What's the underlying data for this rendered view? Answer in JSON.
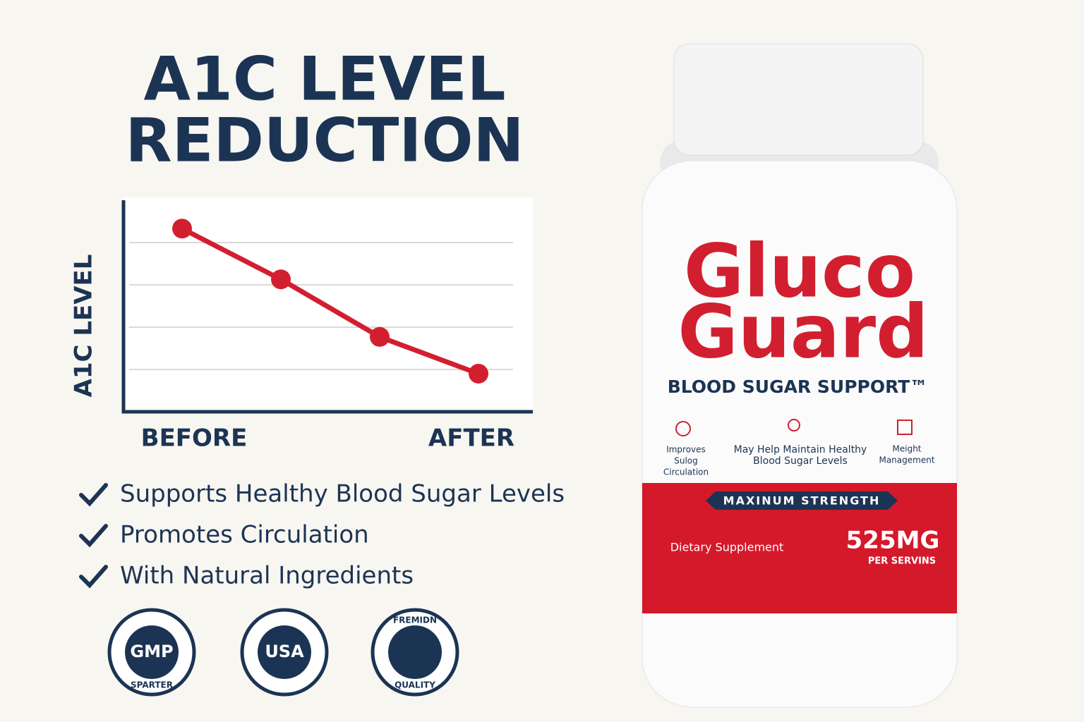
{
  "header": {
    "title_lines": [
      "A1C LEVEL",
      "REDUCTION"
    ]
  },
  "chart_data": {
    "type": "line",
    "y_label": "A1C LEVEL",
    "categories": [
      "BEFORE",
      null,
      null,
      "AFTER"
    ],
    "values": [
      4.33,
      3.13,
      1.77,
      0.9
    ],
    "color": "#d21f30",
    "ylim": [
      0,
      5
    ],
    "yticks": [
      1,
      2,
      3,
      4
    ],
    "grid": true
  },
  "benefits": [
    "Supports Healthy Blood Sugar Levels",
    "Promotes Circulation",
    "With Natural Ingredients"
  ],
  "badges": [
    {
      "lines": [
        "GMP",
        "SPARTER"
      ]
    },
    {
      "lines": [
        "USA"
      ]
    },
    {
      "lines": [
        "FREMIDN",
        "QUALITY"
      ]
    }
  ],
  "product": {
    "brand_lines": [
      "Gluco",
      "Guard"
    ],
    "tagline": "BLOOD SUGAR SUPPORT™",
    "features": [
      [
        "Improves",
        "Sulog",
        "Circulation"
      ],
      [
        "May Help Maintain Healthy",
        "Blood Sugar Levels"
      ],
      [
        "Meight",
        "Management"
      ]
    ],
    "strength": "MAXINUM STRENGTH",
    "category": "Dietary Supplement",
    "dose": "525MG",
    "dose_note": "PER SERVINS"
  }
}
